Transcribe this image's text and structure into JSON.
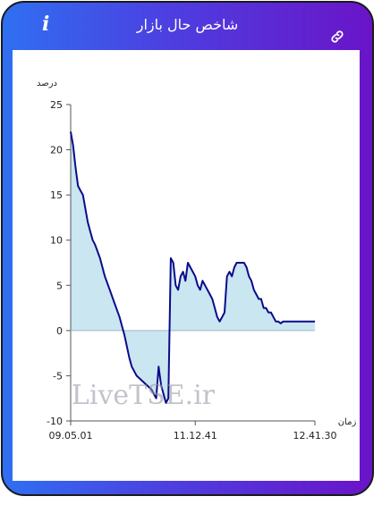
{
  "header": {
    "title": "شاخص حال بازار",
    "info_icon": "i",
    "link_icon": "link-icon"
  },
  "colors": {
    "line": "#0b0b8a",
    "fill": "#c9e6f1",
    "frame_left": "#2f6ff2",
    "frame_right": "#6a14c8"
  },
  "watermark": "LiveTSE.ir",
  "chart_data": {
    "type": "area",
    "ylabel": "درصد",
    "xlabel": "زمان",
    "ylim": [
      -10,
      25
    ],
    "yticks": [
      25,
      20,
      15,
      10,
      5,
      0,
      -5,
      -10
    ],
    "xlim": [
      0,
      100
    ],
    "xtick_labels": [
      {
        "x": 0,
        "label": "09.05.01"
      },
      {
        "x": 51,
        "label": "11.12.41"
      },
      {
        "x": 100,
        "label": "12.41.30"
      }
    ],
    "grid": false,
    "series": [
      {
        "x": [
          0,
          1,
          2,
          3,
          4,
          5,
          6,
          7,
          8,
          9,
          10,
          12,
          14,
          16,
          18,
          20,
          22,
          24,
          25,
          27,
          29,
          31,
          33,
          35,
          36,
          37,
          38,
          39,
          40,
          41,
          42,
          43,
          44,
          45,
          46,
          47,
          48,
          49,
          50,
          51,
          52,
          53,
          54,
          55,
          56,
          57,
          58,
          59,
          60,
          61,
          62,
          63,
          64,
          65,
          66,
          67,
          68,
          69,
          70,
          71,
          72,
          73,
          74,
          75,
          76,
          77,
          78,
          79,
          80,
          81,
          82,
          83,
          84,
          85,
          86,
          87,
          88,
          89,
          90,
          91,
          92,
          93,
          94,
          95,
          96,
          97,
          98,
          100
        ],
        "y": [
          22,
          20.5,
          18,
          16,
          15.5,
          15,
          13.5,
          12,
          11,
          10,
          9.5,
          8,
          6,
          4.5,
          3,
          1.5,
          -0.5,
          -3,
          -4,
          -5,
          -5.5,
          -6,
          -6.5,
          -7.5,
          -4,
          -6,
          -7,
          -8,
          -7.5,
          8,
          7.5,
          5,
          4.5,
          6,
          6.5,
          5.5,
          7.5,
          7,
          6.5,
          6,
          5,
          4.5,
          5.5,
          5,
          4.5,
          4,
          3.5,
          2.5,
          1.5,
          1,
          1.5,
          2,
          6,
          6.5,
          6,
          7,
          7.5,
          7.5,
          7.5,
          7.5,
          7,
          6,
          5.5,
          4.5,
          4,
          3.5,
          3.5,
          2.5,
          2.5,
          2,
          2,
          1.5,
          1,
          1,
          0.8,
          1,
          1,
          1,
          1,
          1,
          1,
          1,
          1,
          1,
          1,
          1,
          1,
          1
        ]
      }
    ]
  }
}
